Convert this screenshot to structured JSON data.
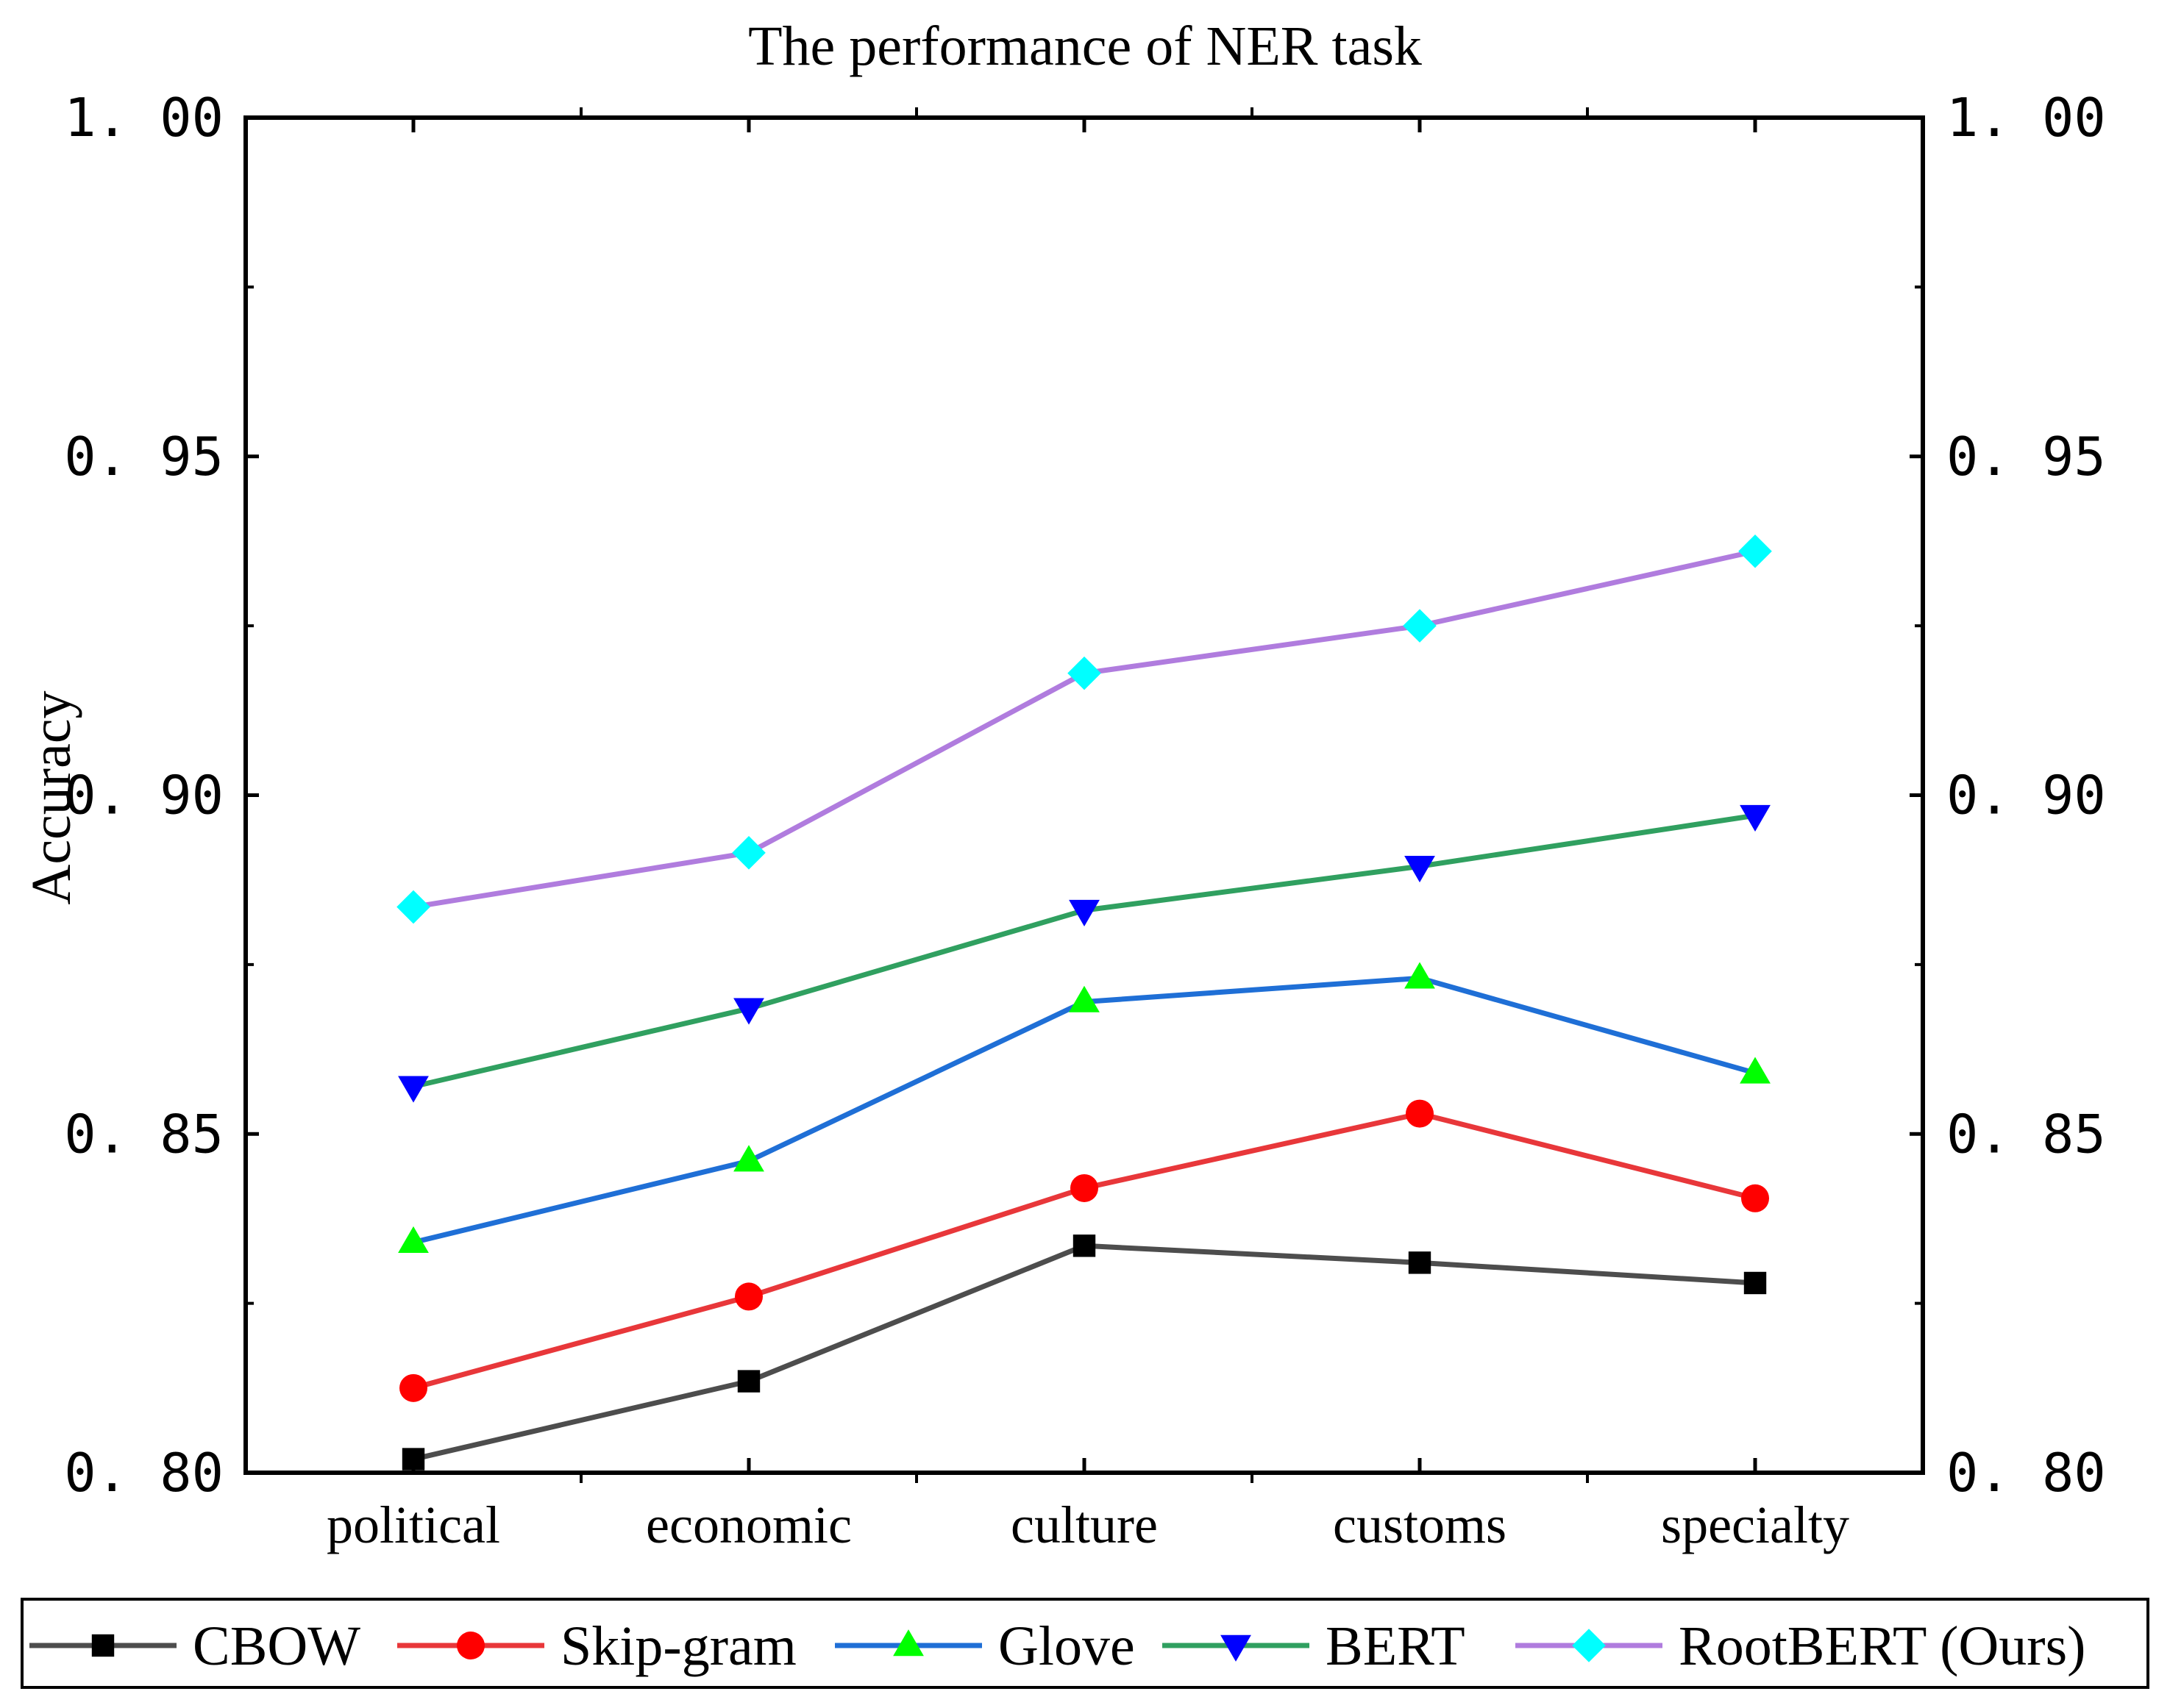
{
  "chart_data": {
    "type": "line",
    "title": "The performance of NER task",
    "xlabel": "",
    "ylabel": "Accuracy",
    "categories": [
      "political",
      "economic",
      "culture",
      "customs",
      "specialty"
    ],
    "ylim": [
      0.8,
      1.0
    ],
    "yticks": [
      "0.80",
      "0.85",
      "0.90",
      "0.95",
      "1.00"
    ],
    "ytick_values": [
      0.8,
      0.85,
      0.9,
      0.95,
      1.0
    ],
    "ytick_labels_display": [
      "0. 80",
      "0. 85",
      "0. 90",
      "0. 95",
      "1. 00"
    ],
    "grid": false,
    "legend_position": "bottom",
    "series": [
      {
        "name": "CBOW",
        "color": "#4d4d4d",
        "marker": "square",
        "marker_color": "#000000",
        "values": [
          0.802,
          0.8135,
          0.8335,
          0.831,
          0.828
        ]
      },
      {
        "name": "Skip-gram",
        "color": "#e8373a",
        "marker": "circle",
        "marker_color": "#ff0000",
        "values": [
          0.8125,
          0.826,
          0.842,
          0.853,
          0.8405
        ]
      },
      {
        "name": "Glove",
        "color": "#1f6fd6",
        "marker": "triangle-up",
        "marker_color": "#00ff00",
        "values": [
          0.834,
          0.846,
          0.8695,
          0.873,
          0.859
        ]
      },
      {
        "name": "BERT",
        "color": "#30a060",
        "marker": "triangle-down",
        "marker_color": "#0000ff",
        "values": [
          0.857,
          0.8685,
          0.883,
          0.8895,
          0.897
        ]
      },
      {
        "name": "RootBERT (Ours)",
        "color": "#b07cde",
        "marker": "diamond",
        "marker_color": "#00ffff",
        "values": [
          0.8835,
          0.8915,
          0.918,
          0.925,
          0.936
        ]
      }
    ]
  }
}
